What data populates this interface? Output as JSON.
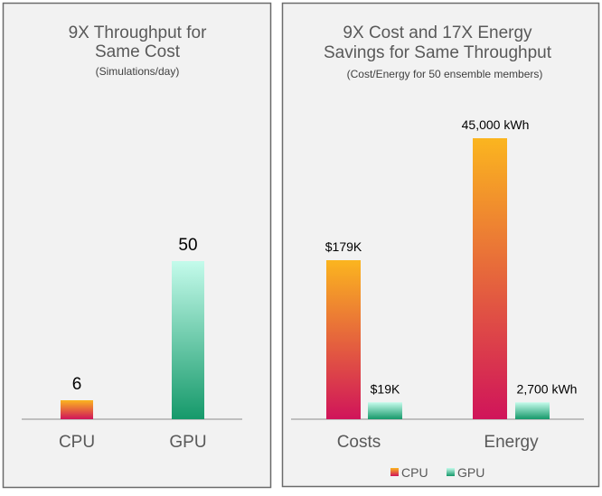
{
  "colors": {
    "cpu_top": "#fbb51f",
    "cpu_bottom": "#d0145a",
    "gpu_top": "#c4fbeb",
    "gpu_bottom": "#16996a",
    "panel_bg": "#f2f2f2",
    "title": "#595959"
  },
  "chart_data": [
    {
      "type": "bar",
      "title": "9X Throughput for Same Cost",
      "subtitle": "(Simulations/day)",
      "categories": [
        "CPU",
        "GPU"
      ],
      "values": [
        6,
        50
      ],
      "data_labels": [
        "6",
        "50"
      ],
      "ylim": [
        0,
        50
      ],
      "grid": false
    },
    {
      "type": "bar",
      "title": "9X Cost and 17X Energy Savings for Same Throughput",
      "subtitle": "(Cost/Energy for 50 ensemble members)",
      "categories": [
        "Costs",
        "Energy"
      ],
      "series": [
        {
          "name": "CPU",
          "values": [
            179000,
            45000
          ],
          "data_labels": [
            "$179K",
            "45,000 kWh"
          ]
        },
        {
          "name": "GPU",
          "values": [
            19000,
            2700
          ],
          "data_labels": [
            "$19K",
            "2,700 kWh"
          ]
        }
      ],
      "units": [
        "$",
        "kWh"
      ],
      "legend": "bottom",
      "grid": false
    }
  ]
}
